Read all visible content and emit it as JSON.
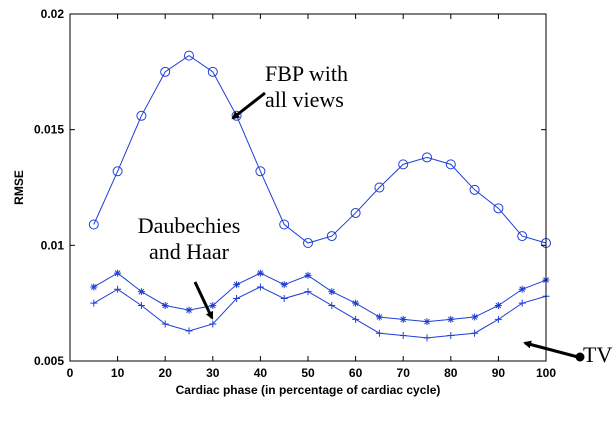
{
  "chart_data": {
    "type": "line",
    "xlabel": "Cardiac phase (in percentage of cardiac cycle)",
    "ylabel": "RMSE",
    "xlim": [
      0,
      100
    ],
    "ylim": [
      0.005,
      0.02
    ],
    "x_ticks": [
      0,
      10,
      20,
      30,
      40,
      50,
      60,
      70,
      80,
      90,
      100
    ],
    "y_ticks": [
      0.005,
      0.01,
      0.015,
      0.02
    ],
    "y_tick_labels": [
      "0.005",
      "0.01",
      "0.015",
      "0.02"
    ],
    "x": [
      5,
      10,
      15,
      20,
      25,
      30,
      35,
      40,
      45,
      50,
      55,
      60,
      65,
      70,
      75,
      80,
      85,
      90,
      95,
      100
    ],
    "series": [
      {
        "marker": "circle",
        "color": "#1f3fd8",
        "values": [
          0.0109,
          0.0132,
          0.0156,
          0.0175,
          0.0182,
          0.0175,
          0.0156,
          0.0132,
          0.0109,
          0.0101,
          0.0104,
          0.0114,
          0.0125,
          0.0135,
          0.0138,
          0.0135,
          0.0124,
          0.0116,
          0.0104,
          0.0101
        ]
      },
      {
        "marker": "star",
        "color": "#1f3fd8",
        "values": [
          0.0082,
          0.0088,
          0.008,
          0.0074,
          0.0072,
          0.0074,
          0.0083,
          0.0088,
          0.0083,
          0.0087,
          0.008,
          0.0075,
          0.0069,
          0.0068,
          0.0067,
          0.0068,
          0.0069,
          0.0074,
          0.0081,
          0.0085
        ]
      },
      {
        "marker": "plus",
        "color": "#1f3fd8",
        "values": [
          0.0075,
          0.0081,
          0.0074,
          0.0066,
          0.0063,
          0.0066,
          0.0077,
          0.0082,
          0.0077,
          0.008,
          0.0074,
          0.0068,
          0.0062,
          0.0061,
          0.006,
          0.0061,
          0.0062,
          0.0068,
          0.0075,
          0.0078
        ]
      }
    ],
    "annotations": [
      {
        "lines": [
          "FBP with",
          "all views"
        ]
      },
      {
        "lines": [
          "Daubechies",
          "and Haar"
        ]
      },
      {
        "lines": [
          "TV"
        ]
      }
    ]
  }
}
